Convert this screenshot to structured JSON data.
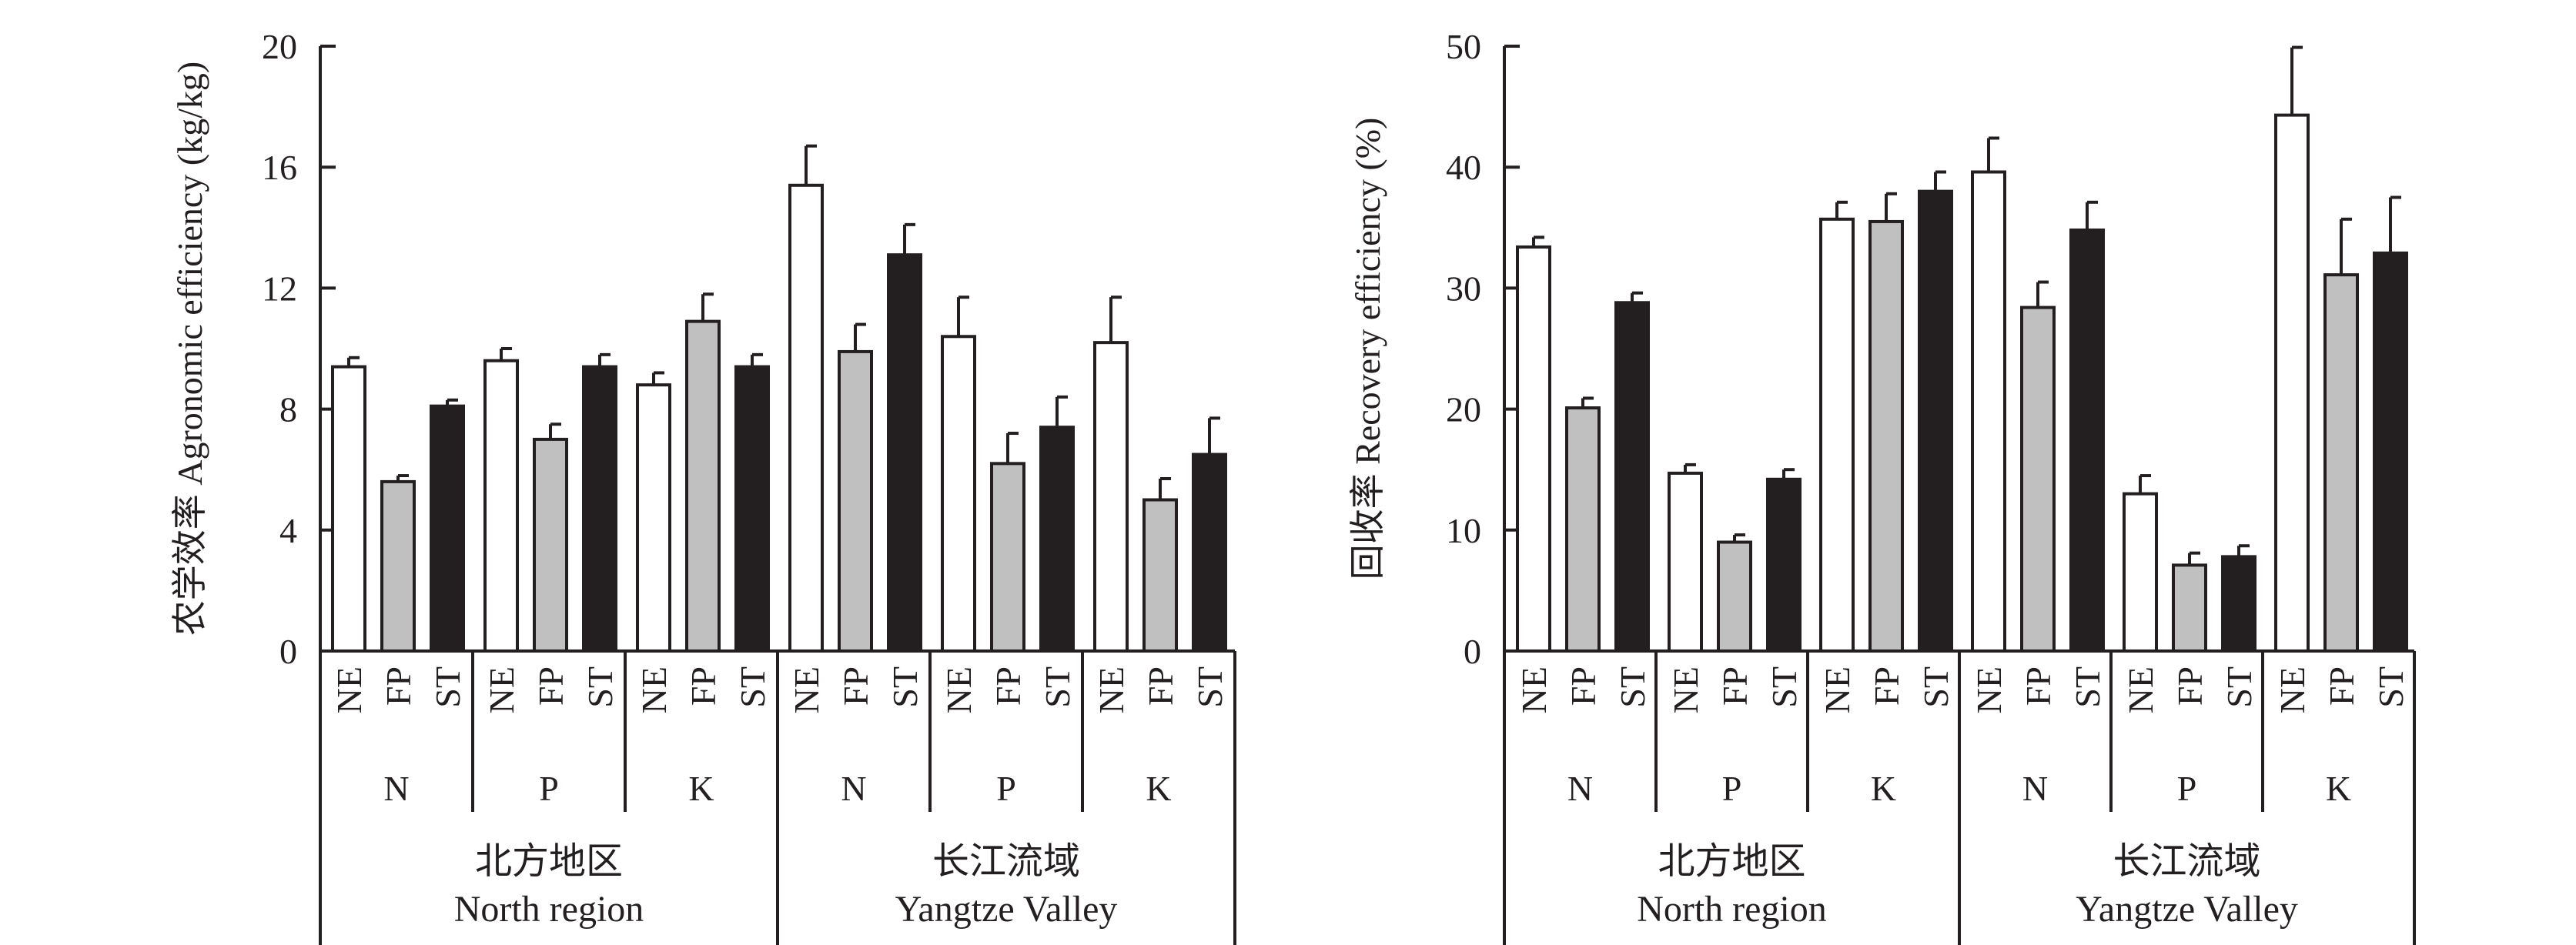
{
  "chart_data": [
    {
      "type": "bar",
      "title": "",
      "ylabel": "农学效率 Agronomic efficiency (kg/kg)",
      "xlabel": "",
      "ylim": [
        0,
        20
      ],
      "yticks": [
        "0",
        "4",
        "8",
        "12",
        "16",
        "20"
      ],
      "treatment_labels": [
        "NE",
        "FP",
        "ST"
      ],
      "nutrient_labels": [
        "N",
        "P",
        "K",
        "N",
        "P",
        "K"
      ],
      "regions": [
        {
          "label_cn": "北方地区",
          "label_en": "North region"
        },
        {
          "label_cn": "长江流域",
          "label_en": "Yangtze Valley"
        }
      ],
      "colors": {
        "NE": "#ffffff",
        "FP": "#c0c0c0",
        "ST": "#231f20"
      },
      "groups": [
        {
          "region": "North region",
          "nutrient": "N",
          "values": [
            9.4,
            5.6,
            8.1
          ],
          "errors": [
            0.3,
            0.2,
            0.2
          ]
        },
        {
          "region": "North region",
          "nutrient": "P",
          "values": [
            9.6,
            7.0,
            9.4
          ],
          "errors": [
            0.4,
            0.5,
            0.4
          ]
        },
        {
          "region": "North region",
          "nutrient": "K",
          "values": [
            8.8,
            10.9,
            9.4
          ],
          "errors": [
            0.4,
            0.9,
            0.4
          ]
        },
        {
          "region": "Yangtze Valley",
          "nutrient": "N",
          "values": [
            15.4,
            9.9,
            13.1
          ],
          "errors": [
            1.3,
            0.9,
            1.0
          ]
        },
        {
          "region": "Yangtze Valley",
          "nutrient": "P",
          "values": [
            10.4,
            6.2,
            7.4
          ],
          "errors": [
            1.3,
            1.0,
            1.0
          ]
        },
        {
          "region": "Yangtze Valley",
          "nutrient": "K",
          "values": [
            10.2,
            5.0,
            6.5
          ],
          "errors": [
            1.5,
            0.7,
            1.2
          ]
        }
      ]
    },
    {
      "type": "bar",
      "title": "",
      "ylabel": "回收率 Recovery efficiency (%)",
      "xlabel": "",
      "ylim": [
        0,
        50
      ],
      "yticks": [
        "0",
        "10",
        "20",
        "30",
        "40",
        "50"
      ],
      "treatment_labels": [
        "NE",
        "FP",
        "ST"
      ],
      "nutrient_labels": [
        "N",
        "P",
        "K",
        "N",
        "P",
        "K"
      ],
      "regions": [
        {
          "label_cn": "北方地区",
          "label_en": "North region"
        },
        {
          "label_cn": "长江流域",
          "label_en": "Yangtze Valley"
        }
      ],
      "colors": {
        "NE": "#ffffff",
        "FP": "#c0c0c0",
        "ST": "#231f20"
      },
      "groups": [
        {
          "region": "North region",
          "nutrient": "N",
          "values": [
            33.4,
            20.1,
            28.8
          ],
          "errors": [
            0.8,
            0.8,
            0.8
          ]
        },
        {
          "region": "North region",
          "nutrient": "P",
          "values": [
            14.7,
            9.0,
            14.2
          ],
          "errors": [
            0.7,
            0.6,
            0.8
          ]
        },
        {
          "region": "North region",
          "nutrient": "K",
          "values": [
            35.7,
            35.5,
            38.0
          ],
          "errors": [
            1.4,
            2.3,
            1.6
          ]
        },
        {
          "region": "Yangtze Valley",
          "nutrient": "N",
          "values": [
            39.6,
            28.4,
            34.8
          ],
          "errors": [
            2.8,
            2.1,
            2.3
          ]
        },
        {
          "region": "Yangtze Valley",
          "nutrient": "P",
          "values": [
            13.0,
            7.1,
            7.8
          ],
          "errors": [
            1.5,
            1.0,
            0.9
          ]
        },
        {
          "region": "Yangtze Valley",
          "nutrient": "K",
          "values": [
            44.3,
            31.1,
            32.9
          ],
          "errors": [
            5.6,
            4.6,
            4.6
          ]
        }
      ]
    }
  ]
}
